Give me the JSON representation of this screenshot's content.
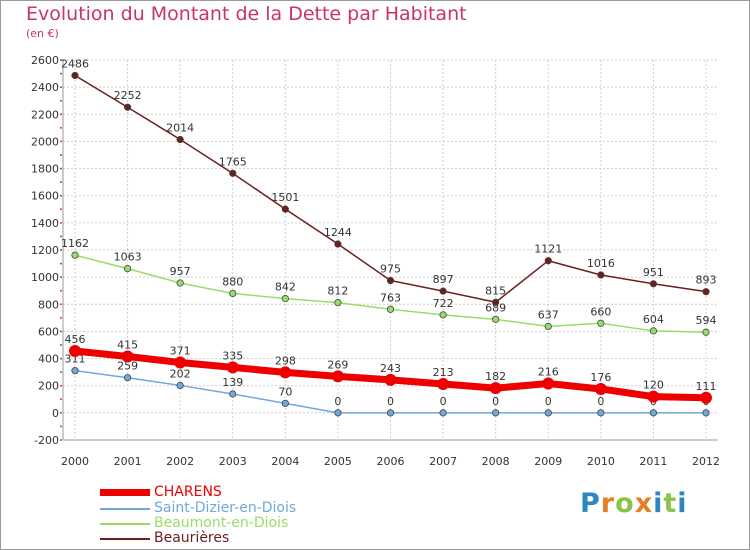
{
  "chart_data": {
    "type": "line",
    "title": "Evolution du Montant de la Dette par Habitant",
    "subtitle": "(en €)",
    "x": [
      "2000",
      "2001",
      "2002",
      "2003",
      "2004",
      "2005",
      "2006",
      "2007",
      "2008",
      "2009",
      "2010",
      "2011",
      "2012"
    ],
    "ylim": [
      -200,
      2600
    ],
    "yticks": [
      "-200",
      "0",
      "200",
      "400",
      "600",
      "800",
      "1000",
      "1200",
      "1400",
      "1600",
      "1800",
      "2000",
      "2200",
      "2400",
      "2600"
    ],
    "grid": true,
    "legend_position": "bottom-left",
    "series": [
      {
        "name": "Beaurières",
        "color": "#6b1f1f",
        "values": [
          2486,
          2252,
          2014,
          1765,
          1501,
          1244,
          975,
          897,
          815,
          1121,
          1016,
          951,
          893
        ]
      },
      {
        "name": "Beaumont-en-Diois",
        "color": "#99dd66",
        "values": [
          1162,
          1063,
          957,
          880,
          842,
          812,
          763,
          722,
          689,
          637,
          660,
          604,
          594
        ]
      },
      {
        "name": "Saint-Dizier-en-Diois",
        "color": "#6fa8dc",
        "values": [
          311,
          259,
          202,
          139,
          70,
          0,
          0,
          0,
          0,
          0,
          0,
          0,
          0
        ]
      },
      {
        "name": "CHARENS",
        "color": "#ee0000",
        "values": [
          456,
          415,
          371,
          335,
          298,
          269,
          243,
          213,
          182,
          216,
          176,
          120,
          111
        ]
      }
    ]
  },
  "legend": [
    {
      "label": "CHARENS",
      "color": "#ee0000"
    },
    {
      "label": "Saint-Dizier-en-Diois",
      "color": "#6fa8dc"
    },
    {
      "label": "Beaumont-en-Diois",
      "color": "#99dd66"
    },
    {
      "label": "Beaurières",
      "color": "#6b1f1f"
    }
  ],
  "logo": {
    "letters": [
      "P",
      "r",
      "o",
      "x",
      "i",
      "t",
      "i"
    ],
    "colors": [
      "#2e86c1",
      "#e67e22",
      "#8bc34a",
      "#e67e22",
      "#2e86c1",
      "#8bc34a",
      "#2e86c1"
    ]
  }
}
